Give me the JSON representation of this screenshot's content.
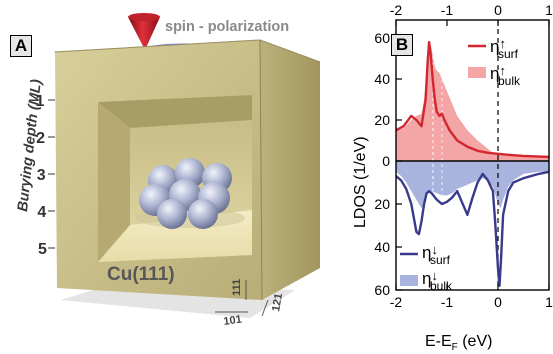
{
  "panel_a": {
    "label": "A",
    "tip_label": "spin - polarization",
    "depth_axis_label": "Burying depth (ML)",
    "depth_ticks": [
      "1",
      "2",
      "3",
      "4",
      "5"
    ],
    "surface_label": "Cu(111)",
    "direction_labels": [
      "111",
      "121",
      "101"
    ]
  },
  "panel_b": {
    "label": "B",
    "ylabel": "LDOS (1/eV)",
    "xlabel": "E-E",
    "xlabel_sub": "F",
    "xlabel_unit": " (eV)"
  },
  "chart_data": [
    {
      "type": "area",
      "panel": "spin-up (top half)",
      "x_ticks": [
        "-2",
        "-1",
        "0",
        "1"
      ],
      "y_ticks": [
        "0",
        "20",
        "40",
        "60"
      ],
      "xlim": [
        -2,
        1
      ],
      "ylim": [
        0,
        60
      ],
      "legend_position": "top-right",
      "colors": {
        "surf": "#d3272f",
        "bulk": "#f4a6a6"
      },
      "series": [
        {
          "name": "η↑surf",
          "sym": "η",
          "arrow": "↑",
          "sub": "surf",
          "style": "line",
          "x": [
            -2.0,
            -1.85,
            -1.7,
            -1.6,
            -1.5,
            -1.42,
            -1.38,
            -1.35,
            -1.32,
            -1.28,
            -1.24,
            -1.2,
            -1.15,
            -1.1,
            -1.05,
            -0.95,
            -0.8,
            -0.6,
            -0.4,
            -0.2,
            0.0,
            0.2,
            0.5,
            1.0
          ],
          "y": [
            15,
            17,
            22,
            20,
            17,
            30,
            48,
            58,
            52,
            40,
            30,
            24,
            22,
            23,
            20,
            15,
            10,
            7,
            5,
            4,
            3.5,
            3,
            2.5,
            2
          ]
        },
        {
          "name": "η↑bulk",
          "sym": "η",
          "arrow": "↑",
          "sub": "bulk",
          "style": "area",
          "x": [
            -2.0,
            -1.85,
            -1.7,
            -1.6,
            -1.5,
            -1.45,
            -1.4,
            -1.35,
            -1.32,
            -1.28,
            -1.24,
            -1.2,
            -1.15,
            -1.1,
            -1.0,
            -0.9,
            -0.8,
            -0.6,
            -0.4,
            -0.2,
            -0.1,
            0.0,
            0.2,
            0.5,
            1.0
          ],
          "y": [
            15,
            16,
            20,
            22,
            23,
            30,
            42,
            55,
            57,
            52,
            46,
            44,
            43,
            40,
            34,
            28,
            22,
            15,
            10,
            6,
            4,
            3,
            2.5,
            2.5,
            2.5
          ]
        }
      ]
    },
    {
      "type": "area",
      "panel": "spin-down (bottom half, inverted axis)",
      "x_ticks": [
        "-2",
        "-1",
        "0",
        "1"
      ],
      "y_ticks": [
        "20",
        "40",
        "60"
      ],
      "xlim": [
        -2,
        1
      ],
      "ylim": [
        0,
        60
      ],
      "legend_position": "bottom-right",
      "colors": {
        "surf": "#3a3a8c",
        "bulk": "#a9b4de"
      },
      "series": [
        {
          "name": "η↓surf",
          "sym": "η",
          "arrow": "↓",
          "sub": "surf",
          "style": "line",
          "x": [
            -2.0,
            -1.9,
            -1.8,
            -1.7,
            -1.6,
            -1.55,
            -1.5,
            -1.45,
            -1.4,
            -1.35,
            -1.3,
            -1.2,
            -1.1,
            -1.0,
            -0.9,
            -0.8,
            -0.6,
            -0.5,
            -0.4,
            -0.3,
            -0.2,
            -0.1,
            -0.05,
            0.0,
            0.03,
            0.06,
            0.1,
            0.2,
            0.3,
            0.5,
            0.8,
            1.0
          ],
          "y": [
            7,
            9,
            13,
            20,
            33,
            34,
            28,
            20,
            15,
            14,
            15,
            18,
            20,
            19,
            17,
            14,
            25,
            17,
            10,
            6,
            9,
            14,
            30,
            50,
            58,
            45,
            25,
            14,
            10,
            8,
            6,
            5
          ]
        },
        {
          "name": "η↓bulk",
          "sym": "η",
          "arrow": "↓",
          "sub": "bulk",
          "style": "area",
          "x": [
            -2.0,
            -1.9,
            -1.8,
            -1.7,
            -1.6,
            -1.5,
            -1.45,
            -1.4,
            -1.35,
            -1.3,
            -1.2,
            -1.1,
            -1.0,
            -0.9,
            -0.8,
            -0.6,
            -0.5,
            -0.4,
            -0.3,
            -0.2,
            -0.1,
            0.0,
            0.05,
            0.1,
            0.2,
            0.3,
            0.5,
            0.8,
            1.0
          ],
          "y": [
            5,
            7,
            10,
            14,
            18,
            22,
            20,
            16,
            14,
            14,
            15,
            16,
            16,
            15,
            13,
            11,
            10,
            9,
            8,
            9,
            12,
            20,
            22,
            18,
            12,
            9,
            6,
            5,
            5
          ]
        }
      ]
    }
  ]
}
